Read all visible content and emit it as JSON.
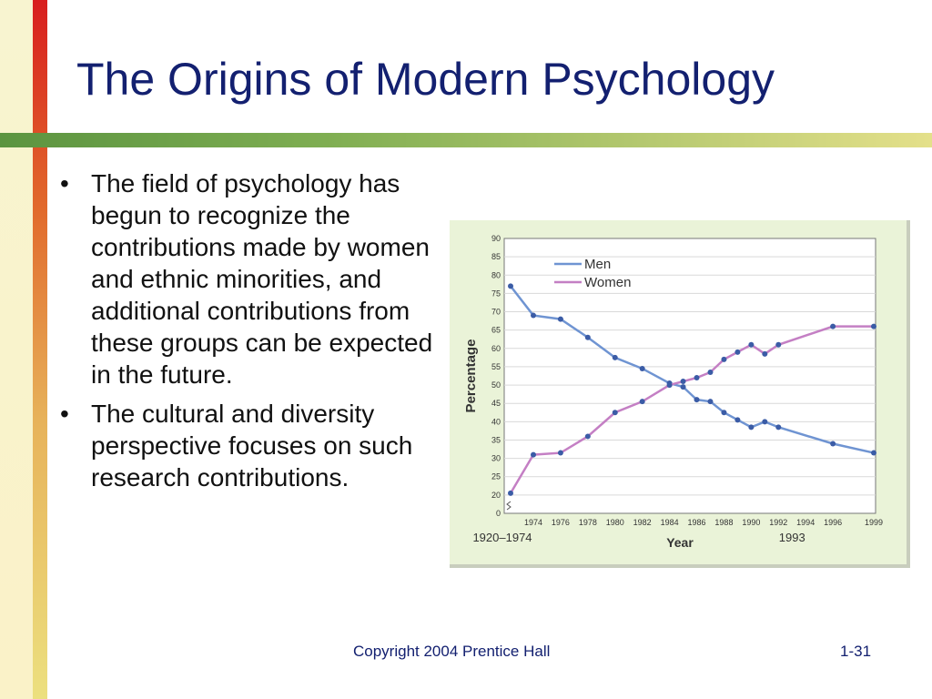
{
  "slide": {
    "title": "The Origins of Modern Psychology",
    "bullets": [
      "The field of psychology has begun to recognize the contributions made by women and ethnic minorities, and additional contributions from these groups can be expected in the future.",
      "The cultural and diversity perspective focuses on such research contributions."
    ],
    "bullet_glyph": "•",
    "footer_copyright": "Copyright 2004 Prentice Hall",
    "footer_page": "1-31"
  },
  "colors": {
    "title": "#132070",
    "men": "#6f94d2",
    "women": "#c47fc4",
    "marker": "#3b5ca6",
    "plot_bg": "#ffffff",
    "card_bg": "#eaf3d8"
  },
  "chart_data": {
    "type": "line",
    "xlabel": "Year",
    "ylabel": "Percentage",
    "ylim": [
      0,
      90
    ],
    "yticks": [
      0,
      20,
      25,
      30,
      35,
      40,
      45,
      50,
      55,
      60,
      65,
      70,
      75,
      80,
      85,
      90
    ],
    "axis_break": true,
    "grid": true,
    "legend": "top-left",
    "x_tick_labels": [
      "1974",
      "1976",
      "1978",
      "1980",
      "1982",
      "1984",
      "1986",
      "1988",
      "1990",
      "1992",
      "1994",
      "1996",
      "1999"
    ],
    "range_labels": [
      "1920–1974",
      "1993"
    ],
    "series": [
      {
        "name": "Men",
        "points": [
          [
            "1920–1974",
            77
          ],
          [
            1974,
            69
          ],
          [
            1976,
            68
          ],
          [
            1978,
            63
          ],
          [
            1980,
            57.5
          ],
          [
            1982,
            54.5
          ],
          [
            1984,
            50.5
          ],
          [
            1985,
            49.5
          ],
          [
            1986,
            46
          ],
          [
            1987,
            45.5
          ],
          [
            1988,
            42.5
          ],
          [
            1989,
            40.5
          ],
          [
            1990,
            38.5
          ],
          [
            1991,
            40
          ],
          [
            1992,
            38.5
          ],
          [
            1996,
            34
          ],
          [
            1999,
            31.5
          ]
        ]
      },
      {
        "name": "Women",
        "points": [
          [
            "1920–1974",
            20.5
          ],
          [
            1974,
            31
          ],
          [
            1976,
            31.5
          ],
          [
            1978,
            36
          ],
          [
            1980,
            42.5
          ],
          [
            1982,
            45.5
          ],
          [
            1984,
            50
          ],
          [
            1985,
            51
          ],
          [
            1986,
            52
          ],
          [
            1987,
            53.5
          ],
          [
            1988,
            57
          ],
          [
            1989,
            59
          ],
          [
            1990,
            61
          ],
          [
            1991,
            58.5
          ],
          [
            1992,
            61
          ],
          [
            1996,
            66
          ],
          [
            1999,
            66
          ]
        ]
      }
    ]
  }
}
